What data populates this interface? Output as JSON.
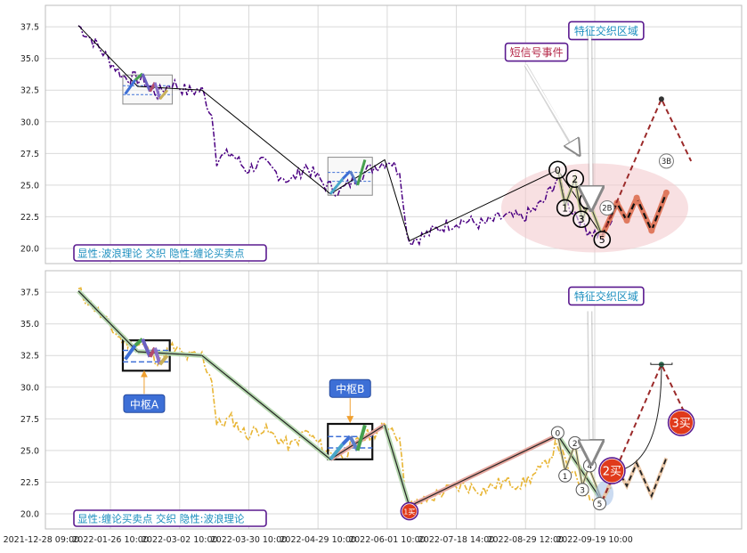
{
  "colors": {
    "price_top": "#4b0082",
    "price_bottom": "#e8b534",
    "wave_line": "#000000",
    "accent_blue": "#3d6fd6",
    "label_border": "#5a1a8f",
    "label_text_teal": "#1d8fbf",
    "label_text_red": "#b5294a",
    "zone_fill": "#f3c6cb",
    "projection": "#9b2a2a",
    "marker_red": "#e03a1b"
  },
  "chart_data": [
    {
      "type": "line",
      "panel": "top",
      "legend_text": "显性:波浪理论 交织 隐性:缠论买卖点",
      "yticks": [
        20.0,
        22.5,
        25.0,
        27.5,
        30.0,
        32.5,
        35.0,
        37.5
      ],
      "ylim": [
        18.8,
        39.2
      ],
      "grid": true,
      "price_series": [
        [
          0.0,
          37.6
        ],
        [
          3.0,
          36.4
        ],
        [
          6.0,
          35.0
        ],
        [
          9.0,
          33.6
        ],
        [
          13.0,
          33.3
        ],
        [
          16.0,
          32.2
        ],
        [
          19.0,
          33.1
        ],
        [
          22.0,
          32.4
        ],
        [
          25.0,
          32.5
        ],
        [
          27.0,
          30.5
        ],
        [
          28.0,
          27.0
        ],
        [
          31.0,
          27.5
        ],
        [
          34.0,
          26.2
        ],
        [
          37.0,
          26.8
        ],
        [
          40.0,
          26.0
        ],
        [
          43.0,
          25.3
        ],
        [
          46.0,
          26.5
        ],
        [
          50.0,
          25.0
        ],
        [
          53.0,
          24.5
        ],
        [
          57.0,
          25.8
        ],
        [
          60.0,
          26.5
        ],
        [
          63.0,
          27.0
        ],
        [
          65.0,
          26.0
        ],
        [
          66.0,
          22.5
        ],
        [
          67.0,
          20.6
        ],
        [
          70.0,
          21.0
        ],
        [
          74.0,
          21.8
        ],
        [
          78.0,
          22.2
        ],
        [
          82.0,
          21.9
        ],
        [
          86.0,
          22.5
        ],
        [
          90.0,
          22.4
        ],
        [
          94.0,
          23.6
        ],
        [
          97.0,
          25.6
        ],
        [
          99.0,
          23.5
        ],
        [
          101.0,
          22.6
        ],
        [
          103.0,
          21.5
        ],
        [
          106.0,
          21.0
        ],
        [
          108.0,
          22.2
        ]
      ],
      "wave_points": [
        [
          0.0,
          37.6
        ],
        [
          12.0,
          32.8
        ],
        [
          25.0,
          32.5
        ],
        [
          51.0,
          24.3
        ],
        [
          62.0,
          27.0
        ],
        [
          67.0,
          20.6
        ],
        [
          97.0,
          26.2
        ],
        [
          106.0,
          21.0
        ]
      ],
      "zhongshu": [
        {
          "x0": 9.0,
          "x1": 19.0,
          "y0": 31.4,
          "y1": 33.7
        },
        {
          "x0": 50.5,
          "x1": 59.5,
          "y0": 24.2,
          "y1": 27.2
        }
      ],
      "wave_numbers": [
        {
          "text": "0",
          "x": 97.0,
          "y": 26.2
        },
        {
          "text": "1",
          "x": 98.5,
          "y": 23.2
        },
        {
          "text": "2",
          "x": 100.5,
          "y": 25.5
        },
        {
          "text": "3",
          "x": 101.8,
          "y": 22.3
        },
        {
          "text": "4",
          "x": 103.2,
          "y": 23.8
        },
        {
          "text": "5",
          "x": 106.0,
          "y": 20.7
        }
      ],
      "event_labels": [
        {
          "text": "2B",
          "x": 107.0,
          "y": 23.2
        },
        {
          "text": "3B",
          "x": 119.0,
          "y": 26.9
        }
      ],
      "projection": [
        [
          106.0,
          21.0
        ],
        [
          118.0,
          31.8
        ],
        [
          124.0,
          26.9
        ]
      ],
      "annotations": [
        {
          "text": "特征交织区域",
          "x": 102.5,
          "y": 37.2
        },
        {
          "text": "短信号事件",
          "x": 92.0,
          "y": 35.5
        }
      ]
    },
    {
      "type": "line",
      "panel": "bottom",
      "legend_text": "显性:缠论买卖点 交织 隐性:波浪理论",
      "xtick_labels": [
        "2021-12-28 09:00",
        "2022-01-26 10:00",
        "2022-03-02 10:00",
        "2022-03-30 10:00",
        "2022-04-29 10:00",
        "2022-06-01 10:00",
        "2022-07-18 14:00",
        "2022-08-29 12:00",
        "2022-09-19 10:00"
      ],
      "xtick_positions": [
        -7.5,
        6.5,
        20.5,
        34.5,
        48.5,
        62.5,
        76.5,
        90.5,
        104.5
      ],
      "yticks": [
        20.0,
        22.5,
        25.0,
        27.5,
        30.0,
        32.5,
        35.0,
        37.5
      ],
      "ylim": [
        18.8,
        39.2
      ],
      "grid": true,
      "bi_points": [
        [
          0.0,
          37.6
        ],
        [
          12.0,
          32.8
        ],
        [
          25.0,
          32.5
        ],
        [
          51.0,
          24.3
        ],
        [
          62.0,
          27.0
        ],
        [
          67.0,
          20.6
        ],
        [
          97.0,
          26.2
        ],
        [
          106.0,
          21.0
        ]
      ],
      "zhongshu": [
        {
          "text": "中枢A",
          "x0": 9.0,
          "x1": 18.5,
          "y0": 31.3,
          "y1": 33.7
        },
        {
          "text": "中枢B",
          "x0": 50.5,
          "x1": 59.5,
          "y0": 24.3,
          "y1": 27.1
        }
      ],
      "buy_sell_points": [
        {
          "text": "1买",
          "x": 67.0,
          "y": 20.2
        },
        {
          "text": "2买",
          "x": 108.0,
          "y": 23.4
        },
        {
          "text": "3买",
          "x": 122.0,
          "y": 27.2
        }
      ],
      "wave_numbers": [
        {
          "text": "0",
          "x": 97.0,
          "y": 26.4
        },
        {
          "text": "1",
          "x": 98.5,
          "y": 23.0
        },
        {
          "text": "2",
          "x": 100.5,
          "y": 25.6
        },
        {
          "text": "3",
          "x": 102.0,
          "y": 21.9
        },
        {
          "text": "4",
          "x": 103.5,
          "y": 23.8
        },
        {
          "text": "5",
          "x": 105.5,
          "y": 20.8
        }
      ],
      "projection": [
        [
          106.0,
          21.0
        ],
        [
          118.0,
          31.8
        ],
        [
          124.0,
          26.9
        ]
      ],
      "annotations": [
        {
          "text": "特征交织区域",
          "x": 102.5,
          "y": 37.2
        },
        {
          "text": "中枢A",
          "x": 13.5,
          "y": 28.7
        },
        {
          "text": "中枢B",
          "x": 55.0,
          "y": 29.9
        }
      ]
    }
  ]
}
